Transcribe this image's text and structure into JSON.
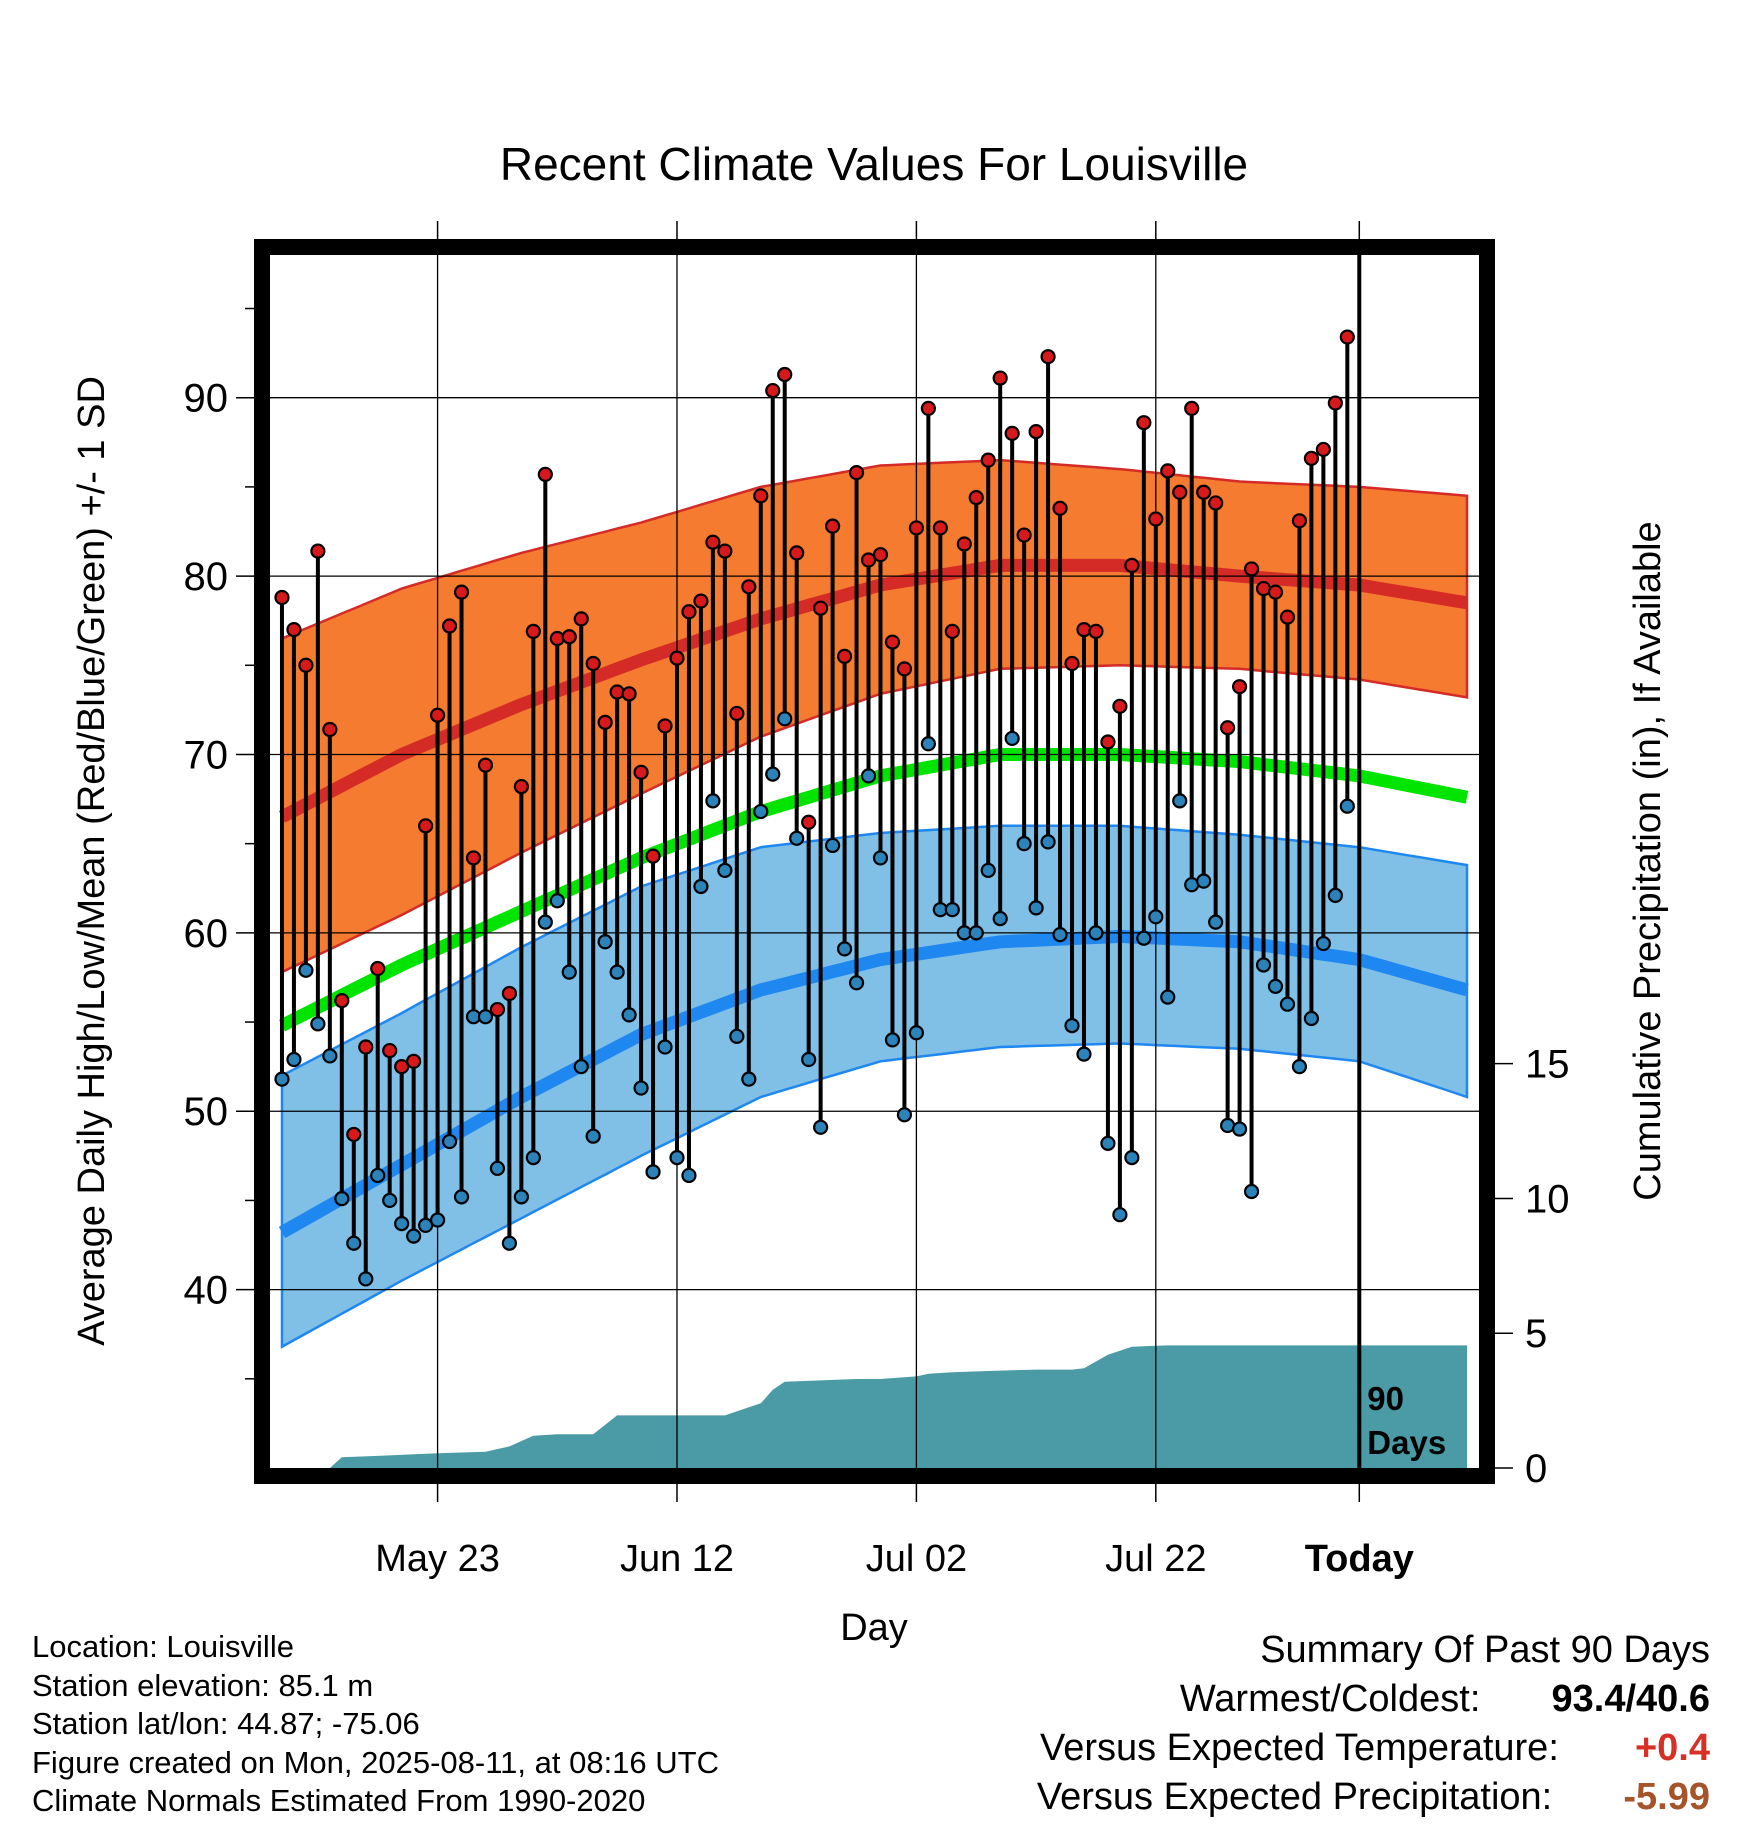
{
  "chart_data": {
    "type": "line",
    "title": "Recent Climate Values For Louisville",
    "xlabel": "Day",
    "ylabel": "Average Daily High/Low/Mean (Red/Blue/Green) +/- 1 SD",
    "y2label": "Cumulative Precipitation (in), If Available",
    "xlim_days": [
      -91,
      10
    ],
    "ylim": [
      30,
      98
    ],
    "y2lim": [
      0,
      45
    ],
    "xticks": [
      {
        "day": -77,
        "label": "May 23"
      },
      {
        "day": -57,
        "label": "Jun 12"
      },
      {
        "day": -37,
        "label": "Jul 02"
      },
      {
        "day": -17,
        "label": "Jul 22"
      },
      {
        "day": 0,
        "label": "Today"
      }
    ],
    "yticks": [
      40,
      50,
      60,
      70,
      80,
      90
    ],
    "y2ticks": [
      0,
      5,
      10,
      15
    ],
    "grid": true,
    "period_label": [
      "90",
      "Days"
    ],
    "normals": {
      "days": [
        -90,
        -80,
        -70,
        -60,
        -50,
        -40,
        -30,
        -20,
        -10,
        0,
        9
      ],
      "high_mean": [
        66.5,
        70.0,
        72.8,
        75.3,
        77.6,
        79.5,
        80.6,
        80.6,
        80.0,
        79.5,
        78.5
      ],
      "high_upper": [
        76.5,
        79.3,
        81.3,
        83.0,
        85.0,
        86.2,
        86.5,
        86.0,
        85.3,
        85.0,
        84.5
      ],
      "high_lower": [
        57.8,
        61.0,
        64.5,
        67.8,
        71.0,
        73.4,
        74.8,
        75.0,
        74.8,
        74.2,
        73.2
      ],
      "mean": [
        54.8,
        58.2,
        61.2,
        64.2,
        66.8,
        68.8,
        70.0,
        70.0,
        69.6,
        68.8,
        67.6
      ],
      "low_mean": [
        43.2,
        47.0,
        50.8,
        54.3,
        56.8,
        58.5,
        59.5,
        59.8,
        59.5,
        58.5,
        56.8
      ],
      "low_upper": [
        52.0,
        55.5,
        59.2,
        62.6,
        64.8,
        65.6,
        66.0,
        66.0,
        65.5,
        64.8,
        63.8
      ],
      "low_lower": [
        36.8,
        40.5,
        44.0,
        47.5,
        50.8,
        52.8,
        53.6,
        53.8,
        53.5,
        52.8,
        50.8
      ]
    },
    "series": [
      {
        "name": "High",
        "color": "#d7191c",
        "values": [
          78.8,
          77.0,
          75.0,
          81.4,
          71.4,
          56.2,
          48.7,
          53.6,
          58.0,
          53.4,
          52.5,
          52.8,
          66.0,
          72.2,
          77.2,
          79.1,
          64.2,
          69.4,
          55.7,
          56.6,
          68.2,
          76.9,
          85.7,
          76.5,
          76.6,
          77.6,
          75.1,
          71.8,
          73.5,
          73.4,
          69.0,
          64.3,
          71.6,
          75.4,
          78.0,
          78.6,
          81.9,
          81.4,
          72.3,
          79.4,
          84.5,
          90.4,
          91.3,
          81.3,
          66.2,
          78.2,
          82.8,
          75.5,
          85.8,
          80.9,
          81.2,
          76.3,
          74.8,
          82.7,
          89.4,
          82.7,
          76.9,
          81.8,
          84.4,
          86.5,
          91.1,
          88.0,
          82.3,
          88.1,
          92.3,
          83.8,
          75.1,
          77.0,
          76.9,
          70.7,
          72.7,
          80.6,
          88.6,
          83.2,
          85.9,
          84.7,
          89.4,
          84.7,
          84.1,
          71.5,
          73.8,
          80.4,
          79.3,
          79.1,
          77.7,
          83.1,
          86.6,
          87.1,
          89.7,
          93.4
        ]
      },
      {
        "name": "Low",
        "color": "#2b83ba",
        "values": [
          51.8,
          52.9,
          57.9,
          54.9,
          53.1,
          45.1,
          42.6,
          40.6,
          46.4,
          45.0,
          43.7,
          43.0,
          43.6,
          43.9,
          48.3,
          45.2,
          55.3,
          55.3,
          46.8,
          42.6,
          45.2,
          47.4,
          60.6,
          61.8,
          57.8,
          52.5,
          48.6,
          59.5,
          57.8,
          55.4,
          51.3,
          46.6,
          53.6,
          47.4,
          46.4,
          62.6,
          67.4,
          63.5,
          54.2,
          51.8,
          66.8,
          68.9,
          72.0,
          65.3,
          52.9,
          49.1,
          64.9,
          59.1,
          57.2,
          68.8,
          64.2,
          54.0,
          49.8,
          54.4,
          70.6,
          61.3,
          61.3,
          60.0,
          60.0,
          63.5,
          60.8,
          70.9,
          65.0,
          61.4,
          65.1,
          59.9,
          54.8,
          53.2,
          60.0,
          48.2,
          44.2,
          47.4,
          59.7,
          60.9,
          56.4,
          67.4,
          62.7,
          62.9,
          60.6,
          49.2,
          49.0,
          45.5,
          58.2,
          57.0,
          56.0,
          52.5,
          55.2,
          59.4,
          62.1,
          67.1
        ]
      },
      {
        "name": "Cumulative Precipitation",
        "color": "#4a9ba5",
        "days": [
          -90,
          -86,
          -85,
          -82,
          -77,
          -73,
          -71,
          -69,
          -67,
          -64,
          -62,
          -57,
          -53,
          -50,
          -49,
          -48,
          -45,
          -42,
          -40,
          -37,
          -36,
          -34,
          -31,
          -27,
          -24,
          -23,
          -21,
          -19,
          -16,
          9
        ],
        "values": [
          0.0,
          0.0,
          0.4,
          0.45,
          0.55,
          0.6,
          0.8,
          1.2,
          1.25,
          1.25,
          1.95,
          1.95,
          1.95,
          2.4,
          2.9,
          3.2,
          3.25,
          3.3,
          3.3,
          3.4,
          3.5,
          3.55,
          3.6,
          3.65,
          3.65,
          3.7,
          4.2,
          4.5,
          4.55,
          4.55
        ]
      }
    ]
  },
  "location": {
    "location_line": "Location: Louisville",
    "elevation_line": "Station elevation: 85.1 m",
    "latlon_line": "Station lat/lon: 44.87; -75.06",
    "created_line": "Figure created on Mon, 2025-08-11, at 08:16 UTC",
    "normals_line": "Climate Normals Estimated From 1990-2020"
  },
  "summary": {
    "title": "Summary Of Past 90 Days",
    "warmest_label": "Warmest/Coldest:",
    "warmest_value": "93.4/40.6",
    "temp_label": "Versus Expected Temperature:",
    "temp_value": "+0.4",
    "temp_color": "#d73027",
    "precip_label": "Versus Expected Precipitation:",
    "precip_value": "-5.99",
    "precip_color": "#a6542a"
  },
  "colors": {
    "high_band": "#f47b30",
    "high_line": "#d42b27",
    "mean_line": "#00e400",
    "low_band": "#80bfe6",
    "low_line": "#1e88f0",
    "precip_fill": "#4a9ba5"
  }
}
